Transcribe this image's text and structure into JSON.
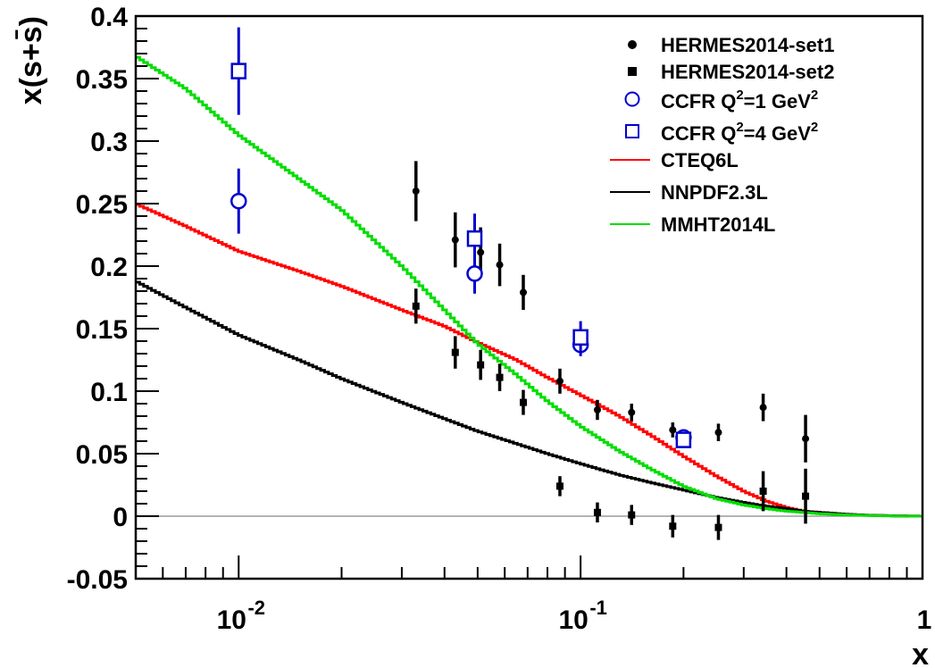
{
  "chart_data": {
    "type": "scatter",
    "xlabel": "x",
    "ylabel": "x(s+s̄)",
    "xscale": "log",
    "xlim": [
      0.005,
      1
    ],
    "ylim": [
      -0.05,
      0.4
    ],
    "yticks": [
      "-0.05",
      "0",
      "0.05",
      "0.1",
      "0.15",
      "0.2",
      "0.25",
      "0.3",
      "0.35",
      "0.4"
    ],
    "xticks": [
      {
        "base": "10",
        "exp": "-2",
        "value": 0.01
      },
      {
        "base": "10",
        "exp": "-1",
        "value": 0.1
      },
      {
        "base": "1",
        "exp": "",
        "value": 1
      }
    ],
    "grid": false,
    "legend_position": "top-right",
    "legend": [
      {
        "text": "HERMES2014-set1"
      },
      {
        "text": "HERMES2014-set2"
      },
      {
        "text": "CCFR Q",
        "sup1": "2",
        "mid": "=1 GeV",
        "sup2": "2"
      },
      {
        "text": "CCFR Q",
        "sup1": "2",
        "mid": "=4 GeV",
        "sup2": "2"
      },
      {
        "text": "CTEQ6L"
      },
      {
        "text": "NNPDF2.3L"
      },
      {
        "text": "MMHT2014L"
      }
    ],
    "points": [
      {
        "name": "HERMES2014-set1",
        "marker": "filled-circle",
        "color": "#000000",
        "x": [
          0.033,
          0.043,
          0.051,
          0.058,
          0.068,
          0.087,
          0.112,
          0.141,
          0.186,
          0.253,
          0.342,
          0.455
        ],
        "y": [
          0.26,
          0.221,
          0.211,
          0.201,
          0.179,
          0.108,
          0.085,
          0.083,
          0.069,
          0.067,
          0.087,
          0.062
        ],
        "err": [
          0.024,
          0.022,
          0.02,
          0.017,
          0.014,
          0.01,
          0.008,
          0.007,
          0.006,
          0.007,
          0.011,
          0.019
        ]
      },
      {
        "name": "HERMES2014-set2",
        "marker": "filled-square",
        "color": "#000000",
        "x": [
          0.033,
          0.043,
          0.051,
          0.058,
          0.068,
          0.087,
          0.112,
          0.141,
          0.186,
          0.253,
          0.342,
          0.455
        ],
        "y": [
          0.168,
          0.131,
          0.121,
          0.111,
          0.091,
          0.024,
          0.003,
          0.001,
          -0.008,
          -0.009,
          0.02,
          0.016
        ],
        "err": [
          0.014,
          0.013,
          0.012,
          0.011,
          0.01,
          0.008,
          0.008,
          0.008,
          0.009,
          0.01,
          0.016,
          0.022
        ]
      },
      {
        "name": "CCFR Q2=1 GeV2",
        "marker": "open-circle",
        "color": "#0000cc",
        "x": [
          0.01,
          0.049,
          0.1,
          0.2
        ],
        "y": [
          0.252,
          0.194,
          0.137,
          0.063
        ],
        "err": [
          0.026,
          0.016,
          0.009,
          0.004
        ]
      },
      {
        "name": "CCFR Q2=4 GeV2",
        "marker": "open-square",
        "color": "#0000cc",
        "x": [
          0.01,
          0.049,
          0.1,
          0.2
        ],
        "y": [
          0.356,
          0.222,
          0.143,
          0.061
        ],
        "err": [
          0.035,
          0.02,
          0.013,
          0.005
        ]
      }
    ],
    "curves": [
      {
        "name": "CTEQ6L",
        "color": "#ff0000",
        "x": [
          0.005,
          0.007,
          0.01,
          0.015,
          0.02,
          0.03,
          0.04,
          0.05,
          0.065,
          0.08,
          0.1,
          0.13,
          0.16,
          0.2,
          0.25,
          0.3,
          0.35,
          0.4,
          0.45,
          0.5,
          0.6,
          0.7,
          0.85,
          1.0
        ],
        "y": [
          0.25,
          0.232,
          0.212,
          0.196,
          0.184,
          0.165,
          0.152,
          0.139,
          0.125,
          0.111,
          0.097,
          0.08,
          0.065,
          0.048,
          0.032,
          0.02,
          0.012,
          0.007,
          0.004,
          0.003,
          0.0015,
          0.0007,
          0.0002,
          0.0
        ]
      },
      {
        "name": "NNPDF2.3L",
        "color": "#000000",
        "x": [
          0.005,
          0.007,
          0.01,
          0.015,
          0.02,
          0.03,
          0.04,
          0.05,
          0.065,
          0.08,
          0.1,
          0.13,
          0.16,
          0.2,
          0.25,
          0.3,
          0.35,
          0.4,
          0.45,
          0.5,
          0.6,
          0.7,
          0.85,
          1.0
        ],
        "y": [
          0.188,
          0.167,
          0.145,
          0.125,
          0.11,
          0.091,
          0.078,
          0.068,
          0.058,
          0.05,
          0.042,
          0.033,
          0.027,
          0.021,
          0.015,
          0.011,
          0.008,
          0.006,
          0.004,
          0.003,
          0.0015,
          0.0007,
          0.0002,
          0.0
        ]
      },
      {
        "name": "MMHT2014L",
        "color": "#00dd00",
        "x": [
          0.005,
          0.007,
          0.01,
          0.015,
          0.02,
          0.03,
          0.04,
          0.05,
          0.065,
          0.08,
          0.1,
          0.13,
          0.16,
          0.2,
          0.25,
          0.3,
          0.35,
          0.4,
          0.45,
          0.5,
          0.6,
          0.7,
          0.85,
          1.0
        ],
        "y": [
          0.368,
          0.342,
          0.305,
          0.27,
          0.245,
          0.2,
          0.165,
          0.138,
          0.113,
          0.092,
          0.072,
          0.052,
          0.038,
          0.024,
          0.014,
          0.009,
          0.006,
          0.004,
          0.003,
          0.002,
          0.001,
          0.0005,
          0.0001,
          0.0
        ]
      }
    ]
  }
}
